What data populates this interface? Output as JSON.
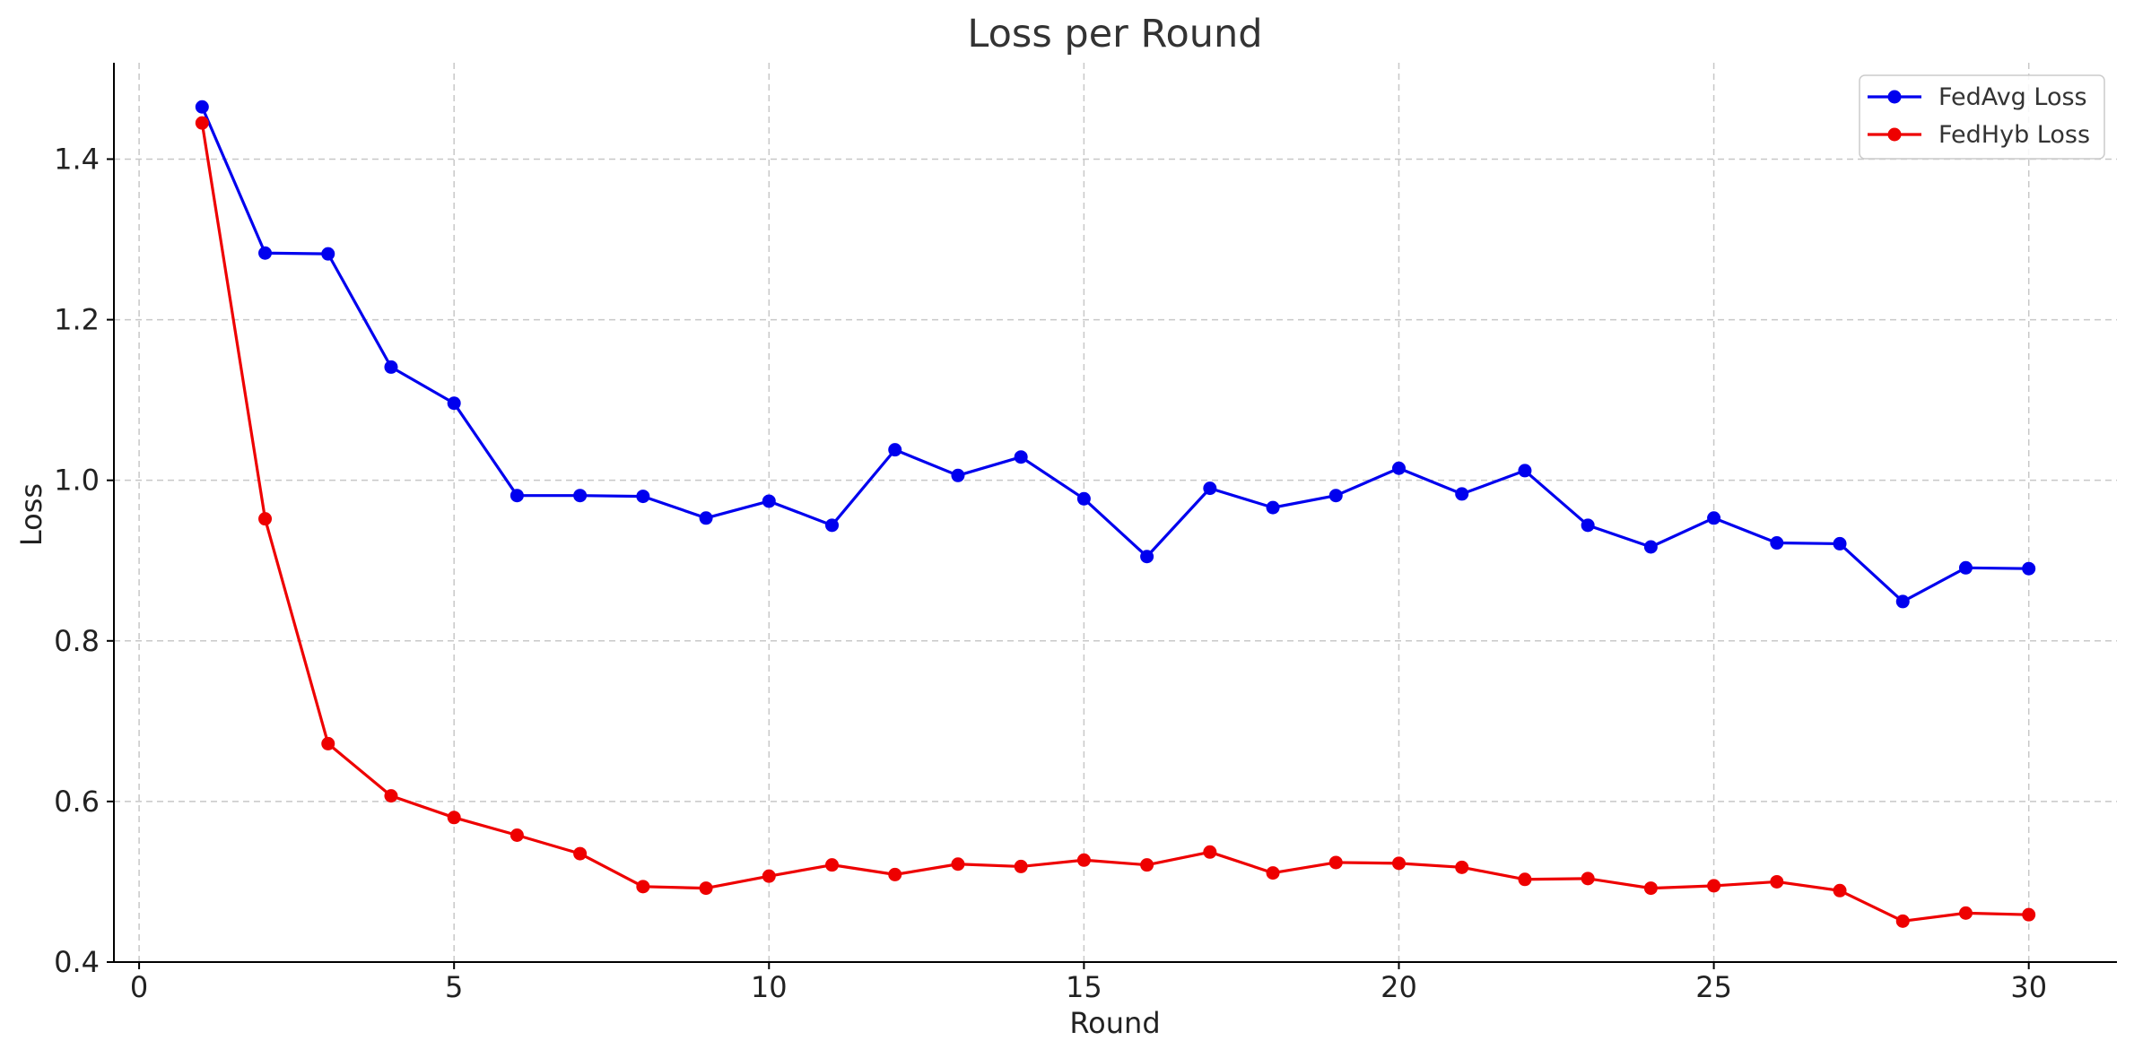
{
  "chart_data": {
    "type": "line",
    "title": "Loss per Round",
    "xlabel": "Round",
    "ylabel": "Loss",
    "xlim": [
      -0.4,
      31.4
    ],
    "ylim": [
      0.4,
      1.52
    ],
    "xticks": [
      0,
      5,
      10,
      15,
      20,
      25,
      30
    ],
    "yticks": [
      0.4,
      0.6,
      0.8,
      1.0,
      1.2,
      1.4
    ],
    "grid": true,
    "legend_position": "top-right",
    "x": [
      1,
      2,
      3,
      4,
      5,
      6,
      7,
      8,
      9,
      10,
      11,
      12,
      13,
      14,
      15,
      16,
      17,
      18,
      19,
      20,
      21,
      22,
      23,
      24,
      25,
      26,
      27,
      28,
      29,
      30
    ],
    "series": [
      {
        "name": "FedAvg Loss",
        "color": "#0000ee",
        "marker": "circle",
        "values": [
          1.465,
          1.283,
          1.282,
          1.141,
          1.096,
          0.981,
          0.981,
          0.98,
          0.953,
          0.974,
          0.944,
          1.038,
          1.006,
          1.029,
          0.977,
          0.905,
          0.99,
          0.966,
          0.981,
          1.015,
          0.983,
          1.012,
          0.944,
          0.917,
          0.953,
          0.922,
          0.921,
          0.849,
          0.891,
          0.89
        ]
      },
      {
        "name": "FedHyb Loss",
        "color": "#ee0000",
        "marker": "circle",
        "values": [
          1.445,
          0.952,
          0.672,
          0.607,
          0.58,
          0.558,
          0.535,
          0.494,
          0.492,
          0.507,
          0.521,
          0.509,
          0.522,
          0.519,
          0.527,
          0.521,
          0.537,
          0.511,
          0.524,
          0.523,
          0.518,
          0.503,
          0.504,
          0.492,
          0.495,
          0.5,
          0.489,
          0.451,
          0.461,
          0.459
        ]
      }
    ]
  }
}
